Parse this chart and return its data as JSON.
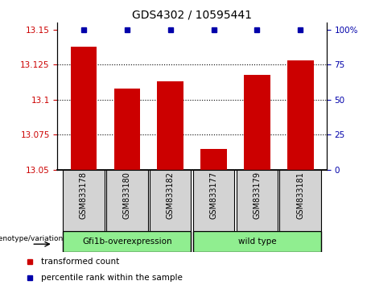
{
  "title": "GDS4302 / 10595441",
  "samples": [
    "GSM833178",
    "GSM833180",
    "GSM833182",
    "GSM833177",
    "GSM833179",
    "GSM833181"
  ],
  "bar_values": [
    13.138,
    13.108,
    13.113,
    13.065,
    13.118,
    13.128
  ],
  "percentile_values": [
    100,
    100,
    100,
    100,
    100,
    100
  ],
  "ylim_left": [
    13.05,
    13.155
  ],
  "ylim_right": [
    0,
    105
  ],
  "yticks_left": [
    13.05,
    13.075,
    13.1,
    13.125,
    13.15
  ],
  "ytick_labels_left": [
    "13.05",
    "13.075",
    "13.1",
    "13.125",
    "13.15"
  ],
  "yticks_right": [
    0,
    25,
    50,
    75,
    100
  ],
  "ytick_labels_right": [
    "0",
    "25",
    "50",
    "75",
    "100%"
  ],
  "grid_lines": [
    13.075,
    13.1,
    13.125
  ],
  "bar_color": "#cc0000",
  "percentile_color": "#0000aa",
  "group1_label": "Gfi1b-overexpression",
  "group1_color": "#90ee90",
  "group2_label": "wild type",
  "group2_color": "#90ee90",
  "xlabel_group": "genotype/variation",
  "legend_bar_label": "transformed count",
  "legend_pct_label": "percentile rank within the sample",
  "tick_label_color_left": "#cc0000",
  "tick_label_color_right": "#0000aa",
  "sample_box_color": "#d3d3d3",
  "bar_width": 0.6
}
